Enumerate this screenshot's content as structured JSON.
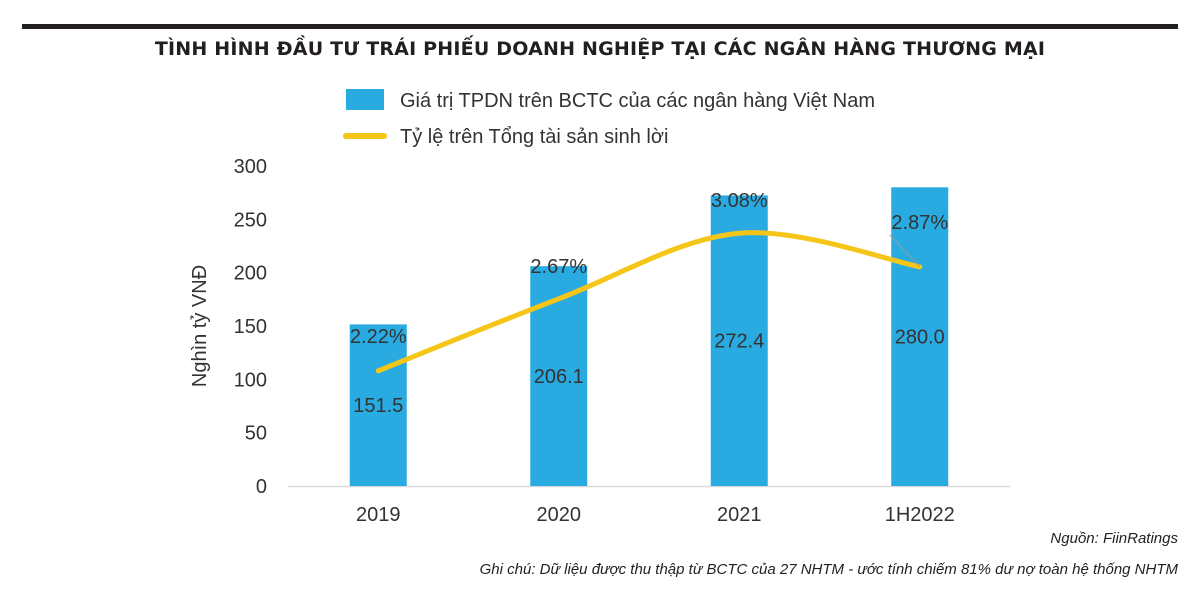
{
  "title": "TÌNH HÌNH ĐẦU TƯ TRÁI PHIẾU DOANH NGHIỆP TẠI CÁC NGÂN HÀNG THƯƠNG MẠI",
  "source": "Nguồn: FiinRatings",
  "note": "Ghi chú: Dữ liệu được thu thập từ BCTC của 27 NHTM - ước tính chiếm 81% dư nợ toàn hệ thống NHTM",
  "colors": {
    "bar": "#29abe2",
    "line": "#f5c518",
    "text": "#333333",
    "axis": "#d9d9d9"
  },
  "chart_data": {
    "type": "bar",
    "categories": [
      "2019",
      "2020",
      "2021",
      "1H2022"
    ],
    "ylabel": "Nghìn tỷ VNĐ",
    "ylim": [
      0,
      300
    ],
    "yticks": [
      0,
      50,
      100,
      150,
      200,
      250,
      300
    ],
    "legend_position": "top",
    "series": [
      {
        "name": "Giá trị TPDN trên BCTC của các ngân hàng Việt Nam",
        "kind": "bar",
        "values": [
          151.5,
          206.1,
          272.4,
          280.0
        ],
        "labels": [
          "151.5",
          "206.1",
          "272.4",
          "280.0"
        ]
      },
      {
        "name": "Tỷ lệ trên Tổng tài sản sinh lời",
        "kind": "line",
        "values": [
          2.22,
          2.67,
          3.08,
          2.87
        ],
        "labels": [
          "2.22%",
          "2.67%",
          "3.08%",
          "2.87%"
        ],
        "unit": "%",
        "secondary_axis_range": [
          1.5,
          3.5
        ]
      }
    ]
  }
}
